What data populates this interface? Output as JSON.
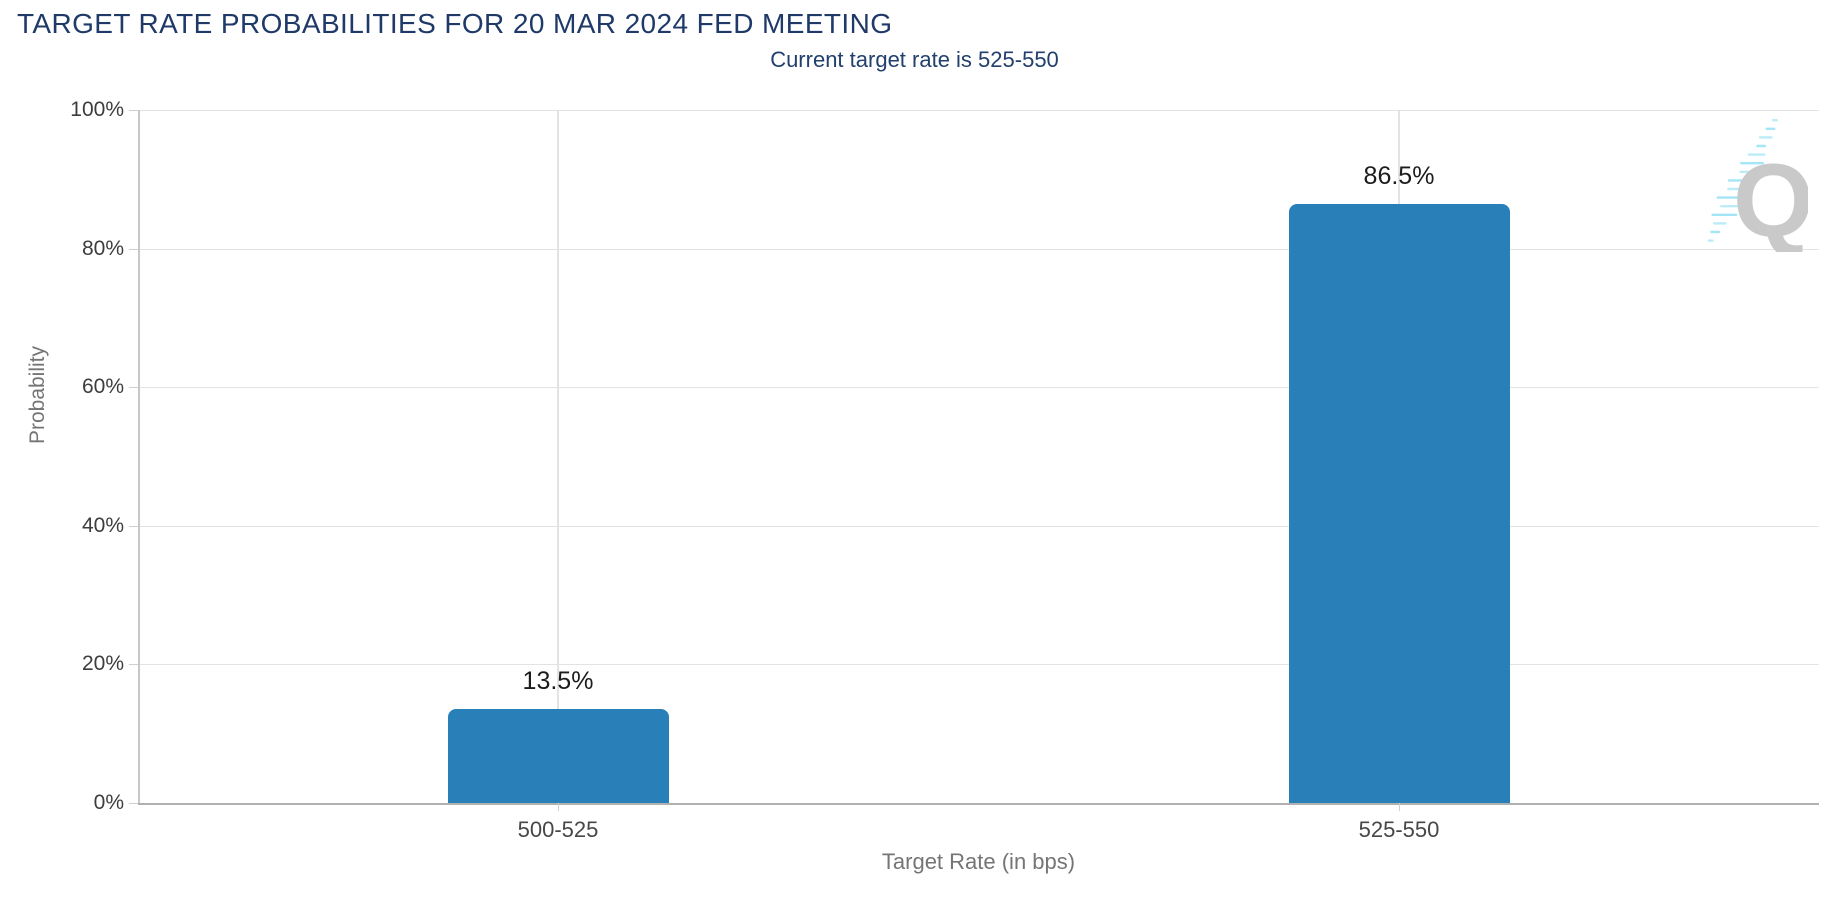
{
  "title": "TARGET RATE PROBABILITIES FOR 20 MAR 2024 FED MEETING",
  "subtitle": "Current target rate is 525-550",
  "watermark_letter": "Q",
  "chart_data": {
    "type": "bar",
    "title": "TARGET RATE PROBABILITIES FOR 20 MAR 2024 FED MEETING",
    "subtitle": "Current target rate is 525-550",
    "categories": [
      "500-525",
      "525-550"
    ],
    "values": [
      13.5,
      86.5
    ],
    "value_labels": [
      "13.5%",
      "86.5%"
    ],
    "xlabel": "Target Rate (in bps)",
    "ylabel": "Probability",
    "ylim": [
      0,
      100
    ],
    "ytick_values": [
      0,
      20,
      40,
      60,
      80,
      100
    ],
    "ytick_labels": [
      "0%",
      "20%",
      "40%",
      "60%",
      "80%",
      "100%"
    ],
    "grid": true,
    "legend": false
  },
  "colors": {
    "title": "#1f3a68",
    "subtitle": "#22406e",
    "bar": "#2980b8",
    "value_label": "#1c1c1c",
    "ytick_label": "#3d3d3d",
    "category_label": "#474747",
    "axis_title": "#757575",
    "gridline": "#e3e3e3",
    "axis_line": "#b0b0b0",
    "watermark_q": "#c9c9c9",
    "watermark_dash": "#9fe4f5"
  }
}
